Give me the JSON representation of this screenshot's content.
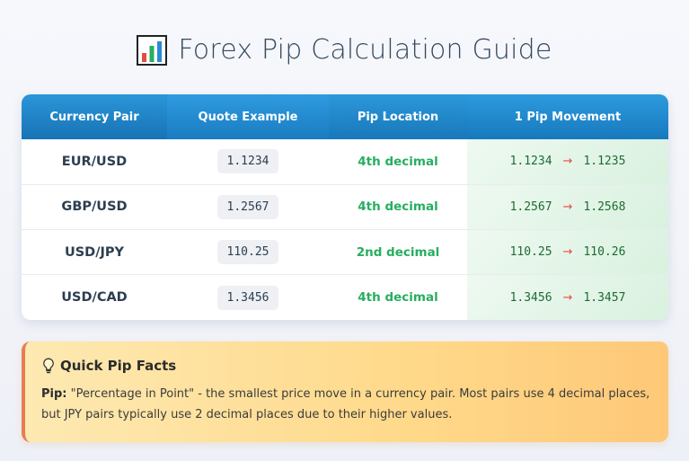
{
  "page": {
    "title": "Forex Pip Calculation Guide",
    "title_icon": "bar-chart-icon"
  },
  "table": {
    "headers": [
      "Currency Pair",
      "Quote Example",
      "Pip Location",
      "1 Pip Movement"
    ],
    "rows": [
      {
        "pair": "EUR/USD",
        "quote": "1.1234",
        "location": "4th decimal",
        "from": "1.1234",
        "arrow": "→",
        "to": "1.1235"
      },
      {
        "pair": "GBP/USD",
        "quote": "1.2567",
        "location": "4th decimal",
        "from": "1.2567",
        "arrow": "→",
        "to": "1.2568"
      },
      {
        "pair": "USD/JPY",
        "quote": "110.25",
        "location": "2nd decimal",
        "from": "110.25",
        "arrow": "→",
        "to": "110.26"
      },
      {
        "pair": "USD/CAD",
        "quote": "1.3456",
        "location": "4th decimal",
        "from": "1.3456",
        "arrow": "→",
        "to": "1.3457"
      }
    ]
  },
  "facts": {
    "icon": "lightbulb-icon",
    "title": "Quick Pip Facts",
    "term": "Pip:",
    "text": "\"Percentage in Point\" - the smallest price move in a currency pair. Most pairs use 4 decimal places, but JPY pairs typically use 2 decimal places due to their higher values."
  },
  "colors": {
    "header_blue": "#1a7cc1",
    "pip_location_green": "#27ae60",
    "arrow_red": "#e74c3c",
    "facts_accent": "#e67e50"
  }
}
